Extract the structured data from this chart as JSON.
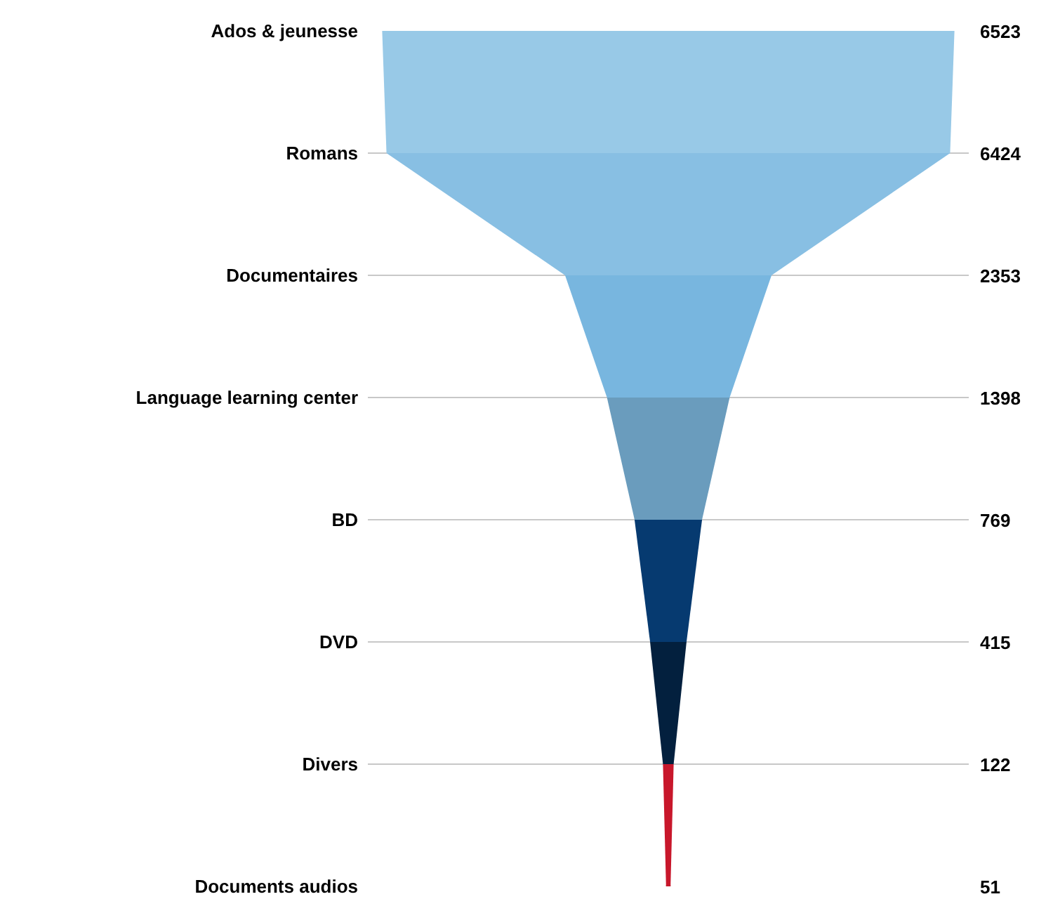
{
  "chart_data": {
    "type": "other",
    "categories": [
      "Ados & jeunesse",
      "Romans",
      "Documentaires",
      "Language learning center",
      "BD",
      "DVD",
      "Divers",
      "Documents audios"
    ],
    "values": [
      6523,
      6424,
      2353,
      1398,
      769,
      415,
      122,
      51
    ],
    "colors": [
      "#98c9e7",
      "#88bfe3",
      "#78b6df",
      "#6a9cbd",
      "#063a70",
      "#03203e",
      "#c8172b",
      "#c8172b"
    ],
    "data_labels": true
  }
}
